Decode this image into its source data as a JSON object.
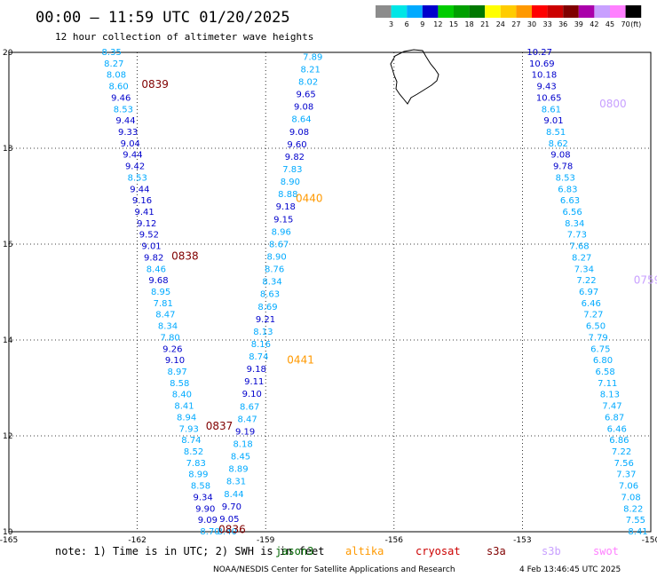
{
  "title": "00:00 — 11:59 UTC 01/20/2025",
  "subtitle": "12 hour collection of altimeter wave heights",
  "note": "note:  1) Time is in UTC;  2) SWH is in feet",
  "credit": "NOAA/NESDIS Center for Satellite Applications and Research",
  "timestamp": "4 Feb 13:46:45 UTC 2025",
  "legend": {
    "labels": [
      "3",
      "6",
      "9",
      "12",
      "15",
      "18",
      "21",
      "24",
      "27",
      "30",
      "33",
      "36",
      "39",
      "42",
      "45",
      "70"
    ],
    "unit": "(ft)",
    "colors": [
      "#8c8c8c",
      "#00e6e6",
      "#00aaff",
      "#0000cc",
      "#00cc00",
      "#00a000",
      "#007800",
      "#ffff00",
      "#ffcc00",
      "#ff9900",
      "#ff0000",
      "#cc0000",
      "#800000",
      "#aa00aa",
      "#c8a0ff",
      "#ff80ff",
      "#000000"
    ]
  },
  "satellites": [
    {
      "name": "jason3",
      "color": "#006600"
    },
    {
      "name": "altika",
      "color": "#ff9900"
    },
    {
      "name": "cryosat",
      "color": "#cc0000"
    },
    {
      "name": "s3a",
      "color": "#800000"
    },
    {
      "name": "s3b",
      "color": "#c8a0ff"
    },
    {
      "name": "swot",
      "color": "#ff80ff"
    }
  ],
  "chart_data": {
    "type": "map",
    "lon_range": [
      -165,
      -150
    ],
    "lat_range": [
      10,
      20
    ],
    "lon_ticks": [
      "-165",
      "-162",
      "-159",
      "-156",
      "-153",
      "-150"
    ],
    "lat_ticks": [
      "20",
      "18",
      "16",
      "14",
      "12",
      "10"
    ],
    "pass_labels": [
      {
        "text": "0839",
        "lon": -161.9,
        "lat": 19.33,
        "color": "#800000"
      },
      {
        "text": "0838",
        "lon": -161.2,
        "lat": 15.75,
        "color": "#800000"
      },
      {
        "text": "0837",
        "lon": -160.4,
        "lat": 12.2,
        "color": "#800000"
      },
      {
        "text": "0836",
        "lon": -160.1,
        "lat": 10.05,
        "color": "#800000"
      },
      {
        "text": "0440",
        "lon": -158.3,
        "lat": 16.95,
        "color": "#ff9900"
      },
      {
        "text": "0441",
        "lon": -158.5,
        "lat": 13.58,
        "color": "#ff9900"
      },
      {
        "text": "0800",
        "lon": -151.2,
        "lat": 18.93,
        "color": "#c8a0ff"
      },
      {
        "text": "0759",
        "lon": -150.4,
        "lat": 15.25,
        "color": "#c8a0ff"
      }
    ],
    "tracks": [
      {
        "name": "s3a-0839",
        "lon_start": -162.6,
        "lon_end": -160.3,
        "lat_start": 20.0,
        "lat_end": 10.0,
        "values": [
          8.35,
          8.27,
          8.08,
          8.6,
          9.46,
          8.53,
          9.44,
          9.33,
          9.04,
          9.44,
          9.42,
          8.53,
          9.44,
          9.16,
          9.41,
          9.12,
          9.52,
          9.01,
          9.82,
          8.46,
          9.68,
          8.95,
          7.81,
          8.47,
          8.34,
          7.8,
          9.26,
          9.1,
          8.97,
          8.58,
          8.4,
          8.41,
          8.94,
          7.93,
          8.74,
          8.52,
          7.83,
          8.99,
          8.58,
          9.34,
          9.9,
          9.09,
          8.7
        ]
      },
      {
        "name": "altika-0440",
        "lon_start": -157.9,
        "lon_end": -159.9,
        "lat_start": 19.9,
        "lat_end": 10.0,
        "values": [
          7.89,
          8.21,
          8.02,
          9.65,
          9.08,
          8.64,
          9.08,
          9.6,
          9.82,
          7.83,
          8.9,
          8.88,
          9.18,
          9.15,
          8.96,
          8.67,
          8.9,
          8.76,
          8.34,
          8.63,
          8.69,
          9.21,
          8.13,
          8.16,
          8.74,
          9.18,
          9.11,
          9.1,
          8.67,
          8.47,
          9.19,
          8.18,
          8.45,
          8.89,
          8.31,
          8.44,
          9.7,
          9.05,
          8.4
        ]
      },
      {
        "name": "s3b-0800",
        "lon_start": -152.6,
        "lon_end": -150.3,
        "lat_start": 20.0,
        "lat_end": 10.0,
        "values": [
          10.27,
          10.69,
          10.18,
          9.43,
          10.65,
          8.61,
          9.01,
          8.51,
          8.62,
          9.08,
          9.78,
          8.53,
          6.83,
          6.63,
          6.56,
          8.34,
          7.73,
          7.68,
          8.27,
          7.34,
          7.22,
          6.97,
          6.46,
          7.27,
          6.5,
          7.79,
          6.75,
          6.8,
          6.58,
          7.11,
          8.13,
          7.47,
          6.87,
          6.46,
          6.86,
          7.22,
          7.56,
          7.37,
          7.06,
          7.08,
          8.22,
          7.55,
          8.41
        ]
      }
    ],
    "land": "Hawaii (Big Island) outline near 155.5W 19.5N",
    "grid": true
  }
}
